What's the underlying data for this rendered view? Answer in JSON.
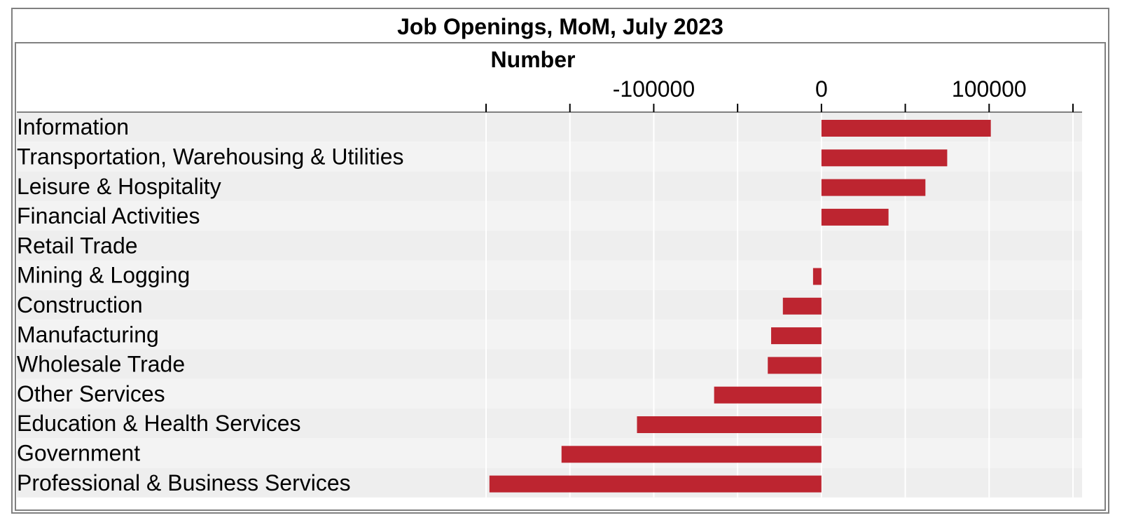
{
  "chart_data": {
    "type": "bar",
    "orientation": "horizontal",
    "title": "Job Openings, MoM, July 2023",
    "xlabel": "Number",
    "ylabel": "",
    "xlim": [
      -200000,
      150000
    ],
    "ticks": [
      -200000,
      -150000,
      -100000,
      -50000,
      0,
      50000,
      100000,
      150000
    ],
    "tick_labels": [
      "",
      "",
      "-100000",
      "",
      "0",
      "",
      "100000",
      ""
    ],
    "grid": true,
    "categories": [
      "Information",
      "Transportation, Warehousing & Utilities",
      "Leisure & Hospitality",
      "Financial Activities",
      "Retail Trade",
      "Mining & Logging",
      "Construction",
      "Manufacturing",
      "Wholesale Trade",
      "Other Services",
      "Education & Health Services",
      "Government",
      "Professional & Business Services"
    ],
    "values": [
      101000,
      75000,
      62000,
      40000,
      0,
      -5000,
      -23000,
      -30000,
      -32000,
      -64000,
      -110000,
      -155000,
      -198000
    ],
    "bar_color": "#bd2530"
  }
}
